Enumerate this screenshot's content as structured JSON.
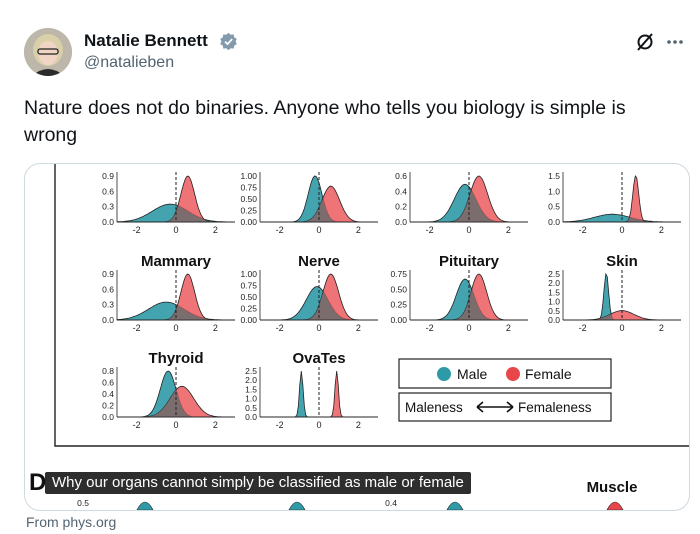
{
  "author": {
    "display_name": "Natalie Bennett",
    "handle": "@natalieben",
    "verified": true
  },
  "tweet": {
    "text": "Nature does not do binaries. Anyone who tells you biology is simple is wrong"
  },
  "media": {
    "caption": "Why our organs cannot simply be classified as male or female",
    "source": "From phys.org",
    "figure": {
      "panel_letter": "D",
      "legend": {
        "male": "Male",
        "female": "Female",
        "axis_left": "Maleness",
        "axis_right": "Femaleness"
      },
      "colors": {
        "male": "#2f9aa7",
        "female": "#e8464b",
        "overlap": "#6f6f6f"
      },
      "panels": [
        {
          "title": "",
          "yticks": [
            "0.9",
            "0.6",
            "0.3",
            "0.0"
          ],
          "xticks": [
            "-2",
            "0",
            "2"
          ]
        },
        {
          "title": "",
          "yticks": [
            "1.00",
            "0.75",
            "0.50",
            "0.25",
            "0.00"
          ],
          "xticks": [
            "-2",
            "0",
            "2"
          ]
        },
        {
          "title": "",
          "yticks": [
            "0.6",
            "0.4",
            "0.2",
            "0.0"
          ],
          "xticks": [
            "-2",
            "0",
            "2"
          ]
        },
        {
          "title": "",
          "yticks": [
            "1.5",
            "1.0",
            "0.5",
            "0.0"
          ],
          "xticks": [
            "-2",
            "0",
            "2"
          ]
        },
        {
          "title": "Mammary",
          "yticks": [
            "0.9",
            "0.6",
            "0.3",
            "0.0"
          ],
          "xticks": [
            "-2",
            "0",
            "2"
          ]
        },
        {
          "title": "Nerve",
          "yticks": [
            "1.00",
            "0.75",
            "0.50",
            "0.25",
            "0.00"
          ],
          "xticks": [
            "-2",
            "0",
            "2"
          ]
        },
        {
          "title": "Pituitary",
          "yticks": [
            "0.75",
            "0.50",
            "0.25",
            "0.00"
          ],
          "xticks": [
            "-2",
            "0",
            "2"
          ]
        },
        {
          "title": "Skin",
          "yticks": [
            "2.5",
            "2.0",
            "1.5",
            "1.0",
            "0.5",
            "0.0"
          ],
          "xticks": [
            "-2",
            "0",
            "2"
          ]
        },
        {
          "title": "Thyroid",
          "yticks": [
            "0.8",
            "0.6",
            "0.4",
            "0.2",
            "0.0"
          ],
          "xticks": [
            "-2",
            "0",
            "2"
          ]
        },
        {
          "title": "OvaTes",
          "yticks": [
            "2.5",
            "2.0",
            "1.5",
            "1.0",
            "0.5",
            "0.0"
          ],
          "xticks": [
            "-2",
            "0",
            "2"
          ]
        }
      ],
      "bottom_titles": [
        "Muscle"
      ],
      "bottom_yticks": [
        "0.5",
        "0.4"
      ]
    }
  }
}
